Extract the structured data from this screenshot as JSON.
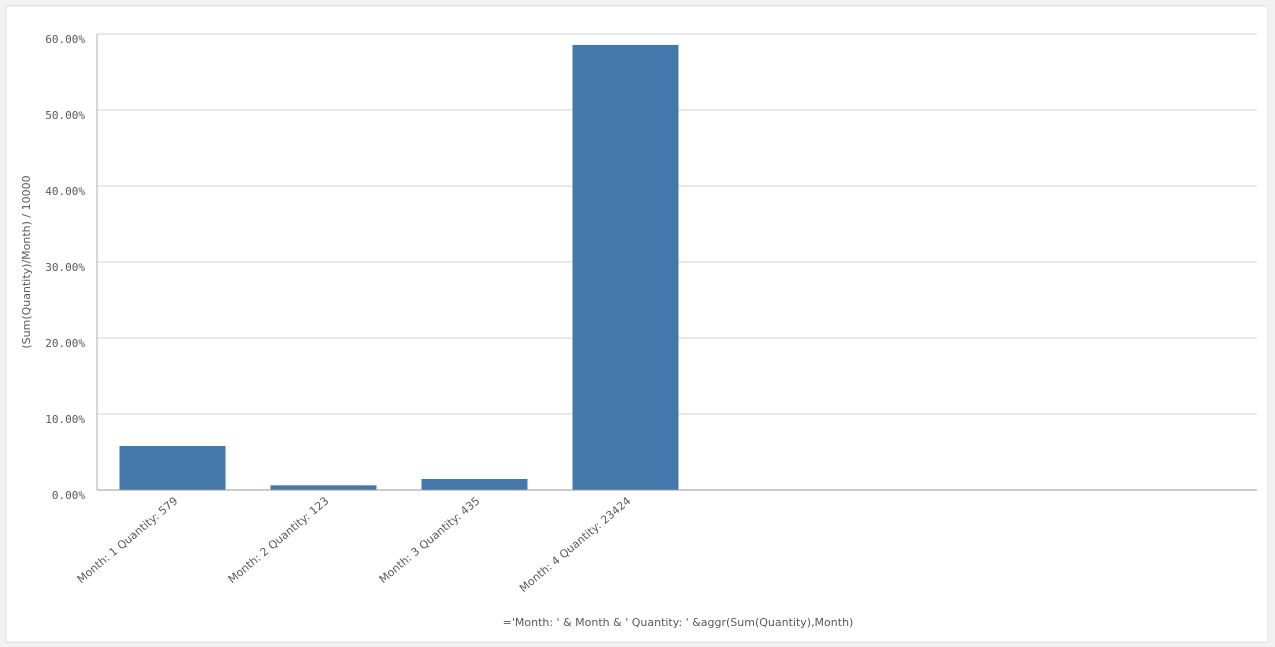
{
  "chart_data": {
    "type": "bar",
    "x_label": "='Month: ' & Month & ' Quantity: ' &aggr(Sum(Quantity),Month)",
    "y_label": "(Sum(Quantity)/Month) / 10000",
    "categories": [
      "Month: 1 Quantity: 579",
      "Month: 2 Quantity: 123",
      "Month: 3 Quantity: 435",
      "Month: 4 Quantity: 23424"
    ],
    "values": [
      5.79,
      0.615,
      1.45,
      58.56
    ],
    "color": "#4477aa",
    "ylim": [
      0,
      60
    ],
    "yticks": [
      {
        "value": 0,
        "label": "0.00%"
      },
      {
        "value": 10,
        "label": "10.00%"
      },
      {
        "value": 20,
        "label": "20.00%"
      },
      {
        "value": 30,
        "label": "30.00%"
      },
      {
        "value": 40,
        "label": "40.00%"
      },
      {
        "value": 50,
        "label": "50.00%"
      },
      {
        "value": 60,
        "label": "60.00%"
      }
    ],
    "grid": true
  }
}
